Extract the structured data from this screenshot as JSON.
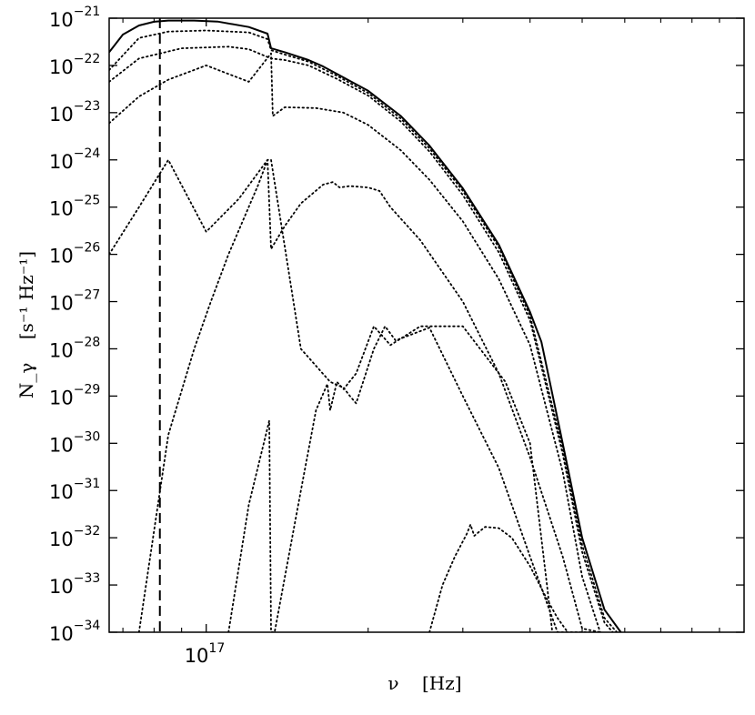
{
  "chart_data": {
    "type": "line",
    "title": "",
    "xscale": "log",
    "yscale": "log",
    "xlim": [
      6.6e+16,
      1e+18
    ],
    "ylim": [
      1e-34,
      1e-21
    ],
    "xlabel": "ν    [Hz]",
    "ylabel": "N_γ    [s⁻¹ Hz⁻¹]",
    "x_ticks": [
      {
        "value": 1e+17,
        "base": "10",
        "exp": "17"
      }
    ],
    "y_ticks": [
      {
        "value": 1e-21,
        "base": "10",
        "exp": "−21"
      },
      {
        "value": 1e-22,
        "base": "10",
        "exp": "−22"
      },
      {
        "value": 1e-23,
        "base": "10",
        "exp": "−23"
      },
      {
        "value": 1e-24,
        "base": "10",
        "exp": "−24"
      },
      {
        "value": 1e-25,
        "base": "10",
        "exp": "−25"
      },
      {
        "value": 1e-26,
        "base": "10",
        "exp": "−26"
      },
      {
        "value": 1e-27,
        "base": "10",
        "exp": "−27"
      },
      {
        "value": 1e-28,
        "base": "10",
        "exp": "−28"
      },
      {
        "value": 1e-29,
        "base": "10",
        "exp": "−29"
      },
      {
        "value": 1e-30,
        "base": "10",
        "exp": "−30"
      },
      {
        "value": 1e-31,
        "base": "10",
        "exp": "−31"
      },
      {
        "value": 1e-32,
        "base": "10",
        "exp": "−32"
      },
      {
        "value": 1e-33,
        "base": "10",
        "exp": "−33"
      },
      {
        "value": 1e-34,
        "base": "10",
        "exp": "−34"
      }
    ],
    "grid": false,
    "legend": "none",
    "vline": {
      "x": 8.2e+16,
      "style": "dashed",
      "color": "#000000"
    },
    "series": [
      {
        "style": "solid",
        "color": "#000000",
        "x": [
          6.6e+16,
          7e+16,
          7.5e+16,
          8e+16,
          8.5e+16,
          9.5e+16,
          1.05e+17,
          1.2e+17,
          1.3e+17,
          1.32e+17,
          1.4e+17,
          1.55e+17,
          1.65e+17,
          1.75e+17,
          2e+17,
          2.3e+17,
          2.6e+17,
          3e+17,
          3.5e+17,
          4e+17,
          4.2e+17,
          4.6e+17,
          5e+17,
          5.5e+17,
          5.9e+17
        ],
        "y": [
          1.9e-22,
          4.5e-22,
          7e-22,
          8.4e-22,
          8.9e-22,
          8.9e-22,
          8.5e-22,
          6.5e-22,
          4.7e-22,
          2.3e-22,
          1.9e-22,
          1.3e-22,
          9.5e-23,
          6.6e-23,
          2.9e-23,
          8.5e-24,
          2e-24,
          2.5e-25,
          1.6e-26,
          6e-28,
          1.4e-28,
          1e-30,
          1e-32,
          3e-34,
          1e-34
        ]
      },
      {
        "style": "dotted",
        "color": "#000000",
        "x": [
          6.6e+16,
          7.5e+16,
          8.5e+16,
          1e+17,
          1.2e+17,
          1.3e+17,
          1.32e+17,
          1.4e+17,
          1.55e+17,
          1.75e+17,
          2e+17,
          2.3e+17,
          2.6e+17,
          3e+17,
          3.5e+17,
          4e+17,
          4.6e+17,
          5e+17,
          5.5e+17,
          5.8e+17
        ],
        "y": [
          8e-23,
          3.8e-22,
          5.2e-22,
          5.5e-22,
          5e-22,
          3.6e-22,
          2.1e-22,
          1.7e-22,
          1.2e-22,
          6e-23,
          2.6e-23,
          7.5e-24,
          1.75e-24,
          2.2e-25,
          1.4e-26,
          5e-28,
          8e-31,
          7e-33,
          2e-34,
          1e-34
        ]
      },
      {
        "style": "dotted",
        "color": "#000000",
        "x": [
          6.6e+16,
          7.5e+16,
          9e+16,
          1.1e+17,
          1.2e+17,
          1.32e+17,
          1.4e+17,
          1.55e+17,
          1.75e+17,
          2e+17,
          2.3e+17,
          2.6e+17,
          3e+17,
          3.5e+17,
          4e+17,
          4.6e+17,
          5e+17,
          5.5e+17,
          5.7e+17
        ],
        "y": [
          4.5e-23,
          1.4e-22,
          2.3e-22,
          2.5e-22,
          2.2e-22,
          1.4e-22,
          1.3e-22,
          1e-22,
          5.2e-23,
          2.3e-23,
          6.5e-24,
          1.5e-24,
          1.8e-25,
          1.1e-26,
          4e-28,
          6e-31,
          5e-33,
          1.6e-34,
          1e-34
        ]
      },
      {
        "style": "dotted",
        "color": "#000000",
        "x": [
          6.6e+16,
          7.5e+16,
          8.5e+16,
          1e+17,
          1.2e+17,
          1.32e+17,
          1.33e+17,
          1.4e+17,
          1.6e+17,
          1.8e+17,
          2e+17,
          2.3e+17,
          2.6e+17,
          3e+17,
          3.5e+17,
          4e+17,
          4.6e+17,
          5e+17,
          5.4e+17
        ],
        "y": [
          6e-24,
          2.2e-23,
          5e-23,
          1e-22,
          4.5e-23,
          1.8e-22,
          8.5e-24,
          1.3e-23,
          1.25e-23,
          1e-23,
          5.5e-24,
          1.6e-24,
          3.8e-25,
          5e-26,
          3e-27,
          1.2e-28,
          2.5e-31,
          1.5e-33,
          1e-34
        ]
      },
      {
        "style": "dotted",
        "color": "#000000",
        "x": [
          6.6e+16,
          7.5e+16,
          8.5e+16,
          1e+17,
          1.15e+17,
          1.3e+17,
          1.32e+17,
          1.4e+17,
          1.5e+17,
          1.65e+17,
          1.72e+17,
          1.77e+17,
          1.85e+17,
          2e+17,
          2.1e+17,
          2.2e+17,
          2.5e+17,
          3e+17,
          3.5e+17,
          4e+17,
          4.6e+17,
          5e+17,
          5.4e+17
        ],
        "y": [
          1e-26,
          1e-25,
          1e-24,
          3e-26,
          1.5e-25,
          1e-24,
          1.3e-26,
          4e-26,
          1.2e-25,
          3e-25,
          3.4e-25,
          2.6e-25,
          2.8e-25,
          2.6e-25,
          2.2e-25,
          1e-25,
          2e-26,
          1e-27,
          3e-29,
          5e-31,
          4e-33,
          1.2e-34,
          1e-34
        ]
      },
      {
        "style": "dotted",
        "color": "#000000",
        "x": [
          7.5e+16,
          8.5e+16,
          9.5e+16,
          1.02e+17,
          1.1e+17,
          1.25e+17,
          1.3e+17,
          1.32e+17,
          1.5e+17,
          1.7e+17,
          1.8e+17,
          1.85e+17,
          1.9e+17,
          2.05e+17,
          2.15e+17,
          2.25e+17,
          2.6e+17,
          3e+17,
          3.5e+17,
          4e+17,
          4.5e+17,
          5e+17,
          5.3e+17
        ],
        "y": [
          1e-34,
          1.5e-30,
          1e-28,
          1e-27,
          1e-26,
          3e-25,
          1e-24,
          1e-24,
          1e-28,
          2e-29,
          1.5e-29,
          1e-29,
          7e-30,
          1e-28,
          3e-28,
          1.5e-28,
          2.8e-28,
          1e-29,
          3e-31,
          4e-33,
          1e-34,
          1e-34,
          1e-34
        ]
      },
      {
        "style": "dotted",
        "color": "#000000",
        "x": [
          1.1e+17,
          1.2e+17,
          1.31e+17,
          1.32e+17,
          1.34e+17,
          1.5e+17,
          1.6e+17,
          1.68e+17,
          1.7e+17,
          1.75e+17,
          1.8e+17,
          1.9e+17,
          2.05e+17,
          2.2e+17,
          2.5e+17,
          3e+17,
          3.6e+17,
          4e+17,
          4.3e+17,
          4.4e+17
        ],
        "y": [
          1e-34,
          5e-32,
          3e-30,
          1e-34,
          1e-34,
          1e-31,
          5e-30,
          1.8e-29,
          5e-30,
          2e-29,
          1.4e-29,
          3e-29,
          3e-28,
          1.2e-28,
          3e-28,
          3e-28,
          2e-29,
          1e-30,
          1e-33,
          1e-34
        ]
      },
      {
        "style": "dotted",
        "color": "#000000",
        "x": [
          2.6e+17,
          2.75e+17,
          2.9e+17,
          3.05e+17,
          3.1e+17,
          3.15e+17,
          3.3e+17,
          3.5e+17,
          3.7e+17,
          4e+17,
          4.3e+17,
          4.5e+17,
          4.7e+17
        ],
        "y": [
          1e-34,
          1e-33,
          4e-33,
          1.2e-32,
          1.9e-32,
          1.1e-32,
          1.7e-32,
          1.6e-32,
          1e-32,
          2.5e-33,
          5e-34,
          2e-34,
          1e-34
        ]
      }
    ]
  }
}
